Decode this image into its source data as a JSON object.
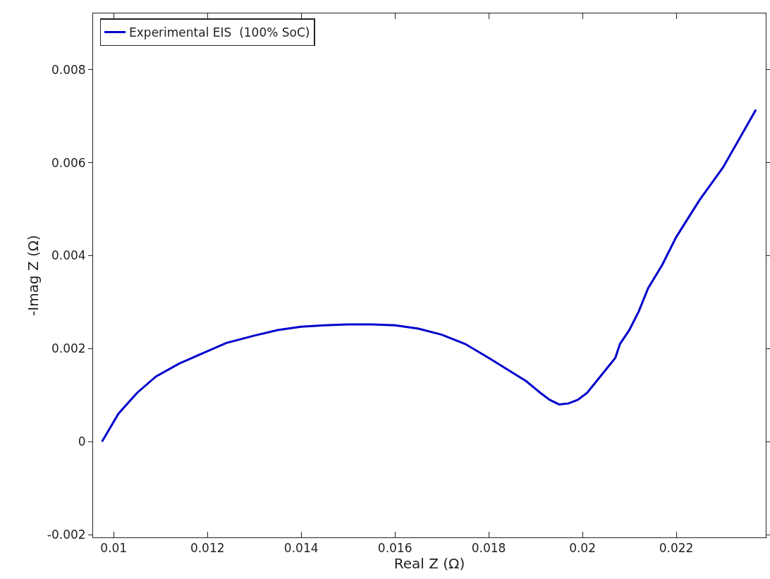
{
  "chart_data": {
    "type": "line",
    "xlabel": "Real Z (Ω)",
    "ylabel": "-Imag Z (Ω)",
    "xlim": [
      0.00956,
      0.02391
    ],
    "xticks": [
      0.01,
      0.012,
      0.014,
      0.016,
      0.018,
      0.02,
      0.022
    ],
    "ylim": [
      -0.00206,
      0.00921
    ],
    "yticks": [
      -0.002,
      0,
      0.002,
      0.004,
      0.006,
      0.008
    ],
    "grid": false,
    "legend": "top left",
    "marker": "none",
    "line_style": "solid",
    "series": [
      {
        "name": "Experimental EIS  (100% SoC)",
        "color": "#0000cc",
        "x": [
          0.00975,
          0.0101,
          0.0105,
          0.0109,
          0.0114,
          0.0119,
          0.0124,
          0.013,
          0.0135,
          0.014,
          0.0145,
          0.015,
          0.0155,
          0.016,
          0.0165,
          0.017,
          0.0175,
          0.018,
          0.0184,
          0.0188,
          0.0191,
          0.0193,
          0.0195,
          0.0197,
          0.0199,
          0.0201,
          0.0203,
          0.0205,
          0.0207,
          0.0208,
          0.021,
          0.0212,
          0.0214,
          0.0217,
          0.022,
          0.0225,
          0.023,
          0.0237
        ],
        "values": [
          0,
          0.0006,
          0.00105,
          0.0014,
          0.00168,
          0.0019,
          0.00212,
          0.00228,
          0.0024,
          0.00247,
          0.0025,
          0.00252,
          0.00252,
          0.0025,
          0.00243,
          0.0023,
          0.0021,
          0.0018,
          0.00155,
          0.0013,
          0.00105,
          0.0009,
          0.0008,
          0.00082,
          0.0009,
          0.00105,
          0.0013,
          0.00155,
          0.0018,
          0.0021,
          0.0024,
          0.0028,
          0.0033,
          0.0038,
          0.0044,
          0.0052,
          0.0059,
          0.00714
        ]
      }
    ]
  }
}
